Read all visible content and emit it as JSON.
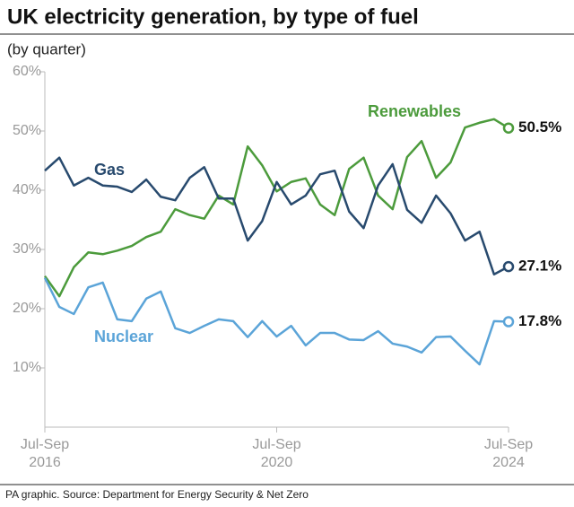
{
  "chart_data": {
    "type": "line",
    "title": "UK electricity generation, by type of fuel",
    "subtitle": "(by quarter)",
    "source": "PA graphic. Source: Department for Energy Security & Net Zero",
    "categories": [
      "Jul-Sep\n2016",
      null,
      null,
      null,
      null,
      null,
      null,
      null,
      null,
      null,
      null,
      null,
      null,
      null,
      null,
      null,
      "Jul-Sep\n2020",
      null,
      null,
      null,
      null,
      null,
      null,
      null,
      null,
      null,
      null,
      null,
      null,
      null,
      null,
      null,
      "Jul-Sep\n2024"
    ],
    "ylim": [
      0,
      60
    ],
    "yticks": [
      {
        "value": 10,
        "label": "10%"
      },
      {
        "value": 20,
        "label": "20%"
      },
      {
        "value": 30,
        "label": "30%"
      },
      {
        "value": 40,
        "label": "40%"
      },
      {
        "value": 50,
        "label": "50%"
      },
      {
        "value": 60,
        "label": "60%"
      }
    ],
    "series": [
      {
        "name": "Renewables",
        "color": "#4c9b3c",
        "values": [
          25.5,
          22.1,
          27.0,
          29.5,
          29.2,
          29.8,
          30.6,
          32.1,
          33.0,
          36.8,
          35.8,
          35.2,
          39.1,
          37.6,
          47.4,
          44.2,
          39.8,
          41.4,
          42.0,
          37.6,
          35.8,
          43.6,
          45.5,
          39.1,
          36.8,
          45.6,
          48.3,
          42.1,
          44.7,
          50.6,
          51.4,
          52.0,
          50.5
        ],
        "value_labels": [
          null,
          null,
          null,
          null,
          null,
          null,
          null,
          null,
          null,
          null,
          null,
          null,
          null,
          null,
          null,
          null,
          null,
          null,
          null,
          null,
          null,
          null,
          null,
          null,
          null,
          null,
          null,
          null,
          null,
          null,
          null,
          null,
          "50.5%"
        ]
      },
      {
        "name": "Gas",
        "color": "#284a6e",
        "values": [
          43.3,
          45.5,
          40.8,
          42.1,
          40.8,
          40.6,
          39.7,
          41.8,
          38.9,
          38.3,
          42.1,
          43.9,
          38.6,
          38.6,
          31.5,
          34.8,
          41.4,
          37.6,
          39.1,
          42.7,
          43.3,
          36.4,
          33.6,
          40.8,
          44.4,
          36.7,
          34.5,
          39.1,
          36.1,
          31.5,
          33.0,
          25.8,
          27.1
        ],
        "value_labels": [
          null,
          null,
          null,
          null,
          null,
          null,
          null,
          null,
          null,
          null,
          null,
          null,
          null,
          null,
          null,
          null,
          null,
          null,
          null,
          null,
          null,
          null,
          null,
          null,
          null,
          null,
          null,
          null,
          null,
          null,
          null,
          null,
          "27.1%"
        ]
      },
      {
        "name": "Nuclear",
        "color": "#5ba4d8",
        "values": [
          25.2,
          20.3,
          19.1,
          23.6,
          24.4,
          18.2,
          17.9,
          21.7,
          22.9,
          16.7,
          15.9,
          17.1,
          18.2,
          17.9,
          15.2,
          17.9,
          15.3,
          17.1,
          13.8,
          15.9,
          15.9,
          14.8,
          14.7,
          16.2,
          14.1,
          13.6,
          12.6,
          15.2,
          15.3,
          12.9,
          10.6,
          17.9,
          17.8
        ],
        "value_labels": [
          null,
          null,
          null,
          null,
          null,
          null,
          null,
          null,
          null,
          null,
          null,
          null,
          null,
          null,
          null,
          null,
          null,
          null,
          null,
          null,
          null,
          null,
          null,
          null,
          null,
          null,
          null,
          null,
          null,
          null,
          null,
          null,
          "17.8%"
        ]
      }
    ]
  }
}
